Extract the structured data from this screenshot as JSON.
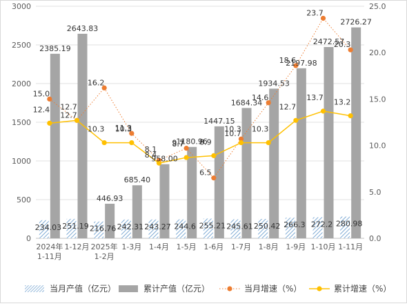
{
  "chart_data": {
    "type": "bar",
    "categories": [
      [
        "2024年",
        "1-11月"
      ],
      [
        "1-12月"
      ],
      [
        "2025年",
        "1-2月"
      ],
      [
        "1-3月"
      ],
      [
        "1-4月"
      ],
      [
        "1-5月"
      ],
      [
        "1-6月"
      ],
      [
        "1-7月"
      ],
      [
        "1-8月"
      ],
      [
        "1-9月"
      ],
      [
        "1-10月"
      ],
      [
        "1-11月"
      ]
    ],
    "series": [
      {
        "name": "当月产值（亿元）",
        "kind": "bar",
        "axis": "left",
        "pattern": "hatch",
        "color": "#9dc3e6",
        "values": [
          234.03,
          251.19,
          216.76,
          242.31,
          243.27,
          244.6,
          255.21,
          245.61,
          250.42,
          266.3,
          272.2,
          280.98
        ],
        "labels": [
          "234.03",
          "251.19",
          "216.76",
          "242.31",
          "243.27",
          "244.6",
          "255.21",
          "245.61",
          "250.42",
          "266.3",
          "272.2",
          "280.98"
        ]
      },
      {
        "name": "累计产值（亿元）",
        "kind": "bar",
        "axis": "left",
        "color": "#a5a5a5",
        "values": [
          2385.19,
          2643.83,
          446.93,
          685.4,
          958.0,
          1180.96,
          1447.15,
          1684.34,
          1934.53,
          2197.98,
          2472.57,
          2726.27
        ],
        "labels": [
          "2385.19",
          "2643.83",
          "446.93",
          "685.40",
          "958.00",
          "1180.96",
          "1447.15",
          "1684.34",
          "1934.53",
          "2197.98",
          "2472.57",
          "2726.27"
        ]
      },
      {
        "name": "当月增速（%）",
        "kind": "line",
        "axis": "right",
        "color": "#ed7d31",
        "dotted": true,
        "values": [
          15.0,
          12.7,
          16.2,
          11.3,
          8.4,
          9.7,
          6.5,
          10.7,
          14.6,
          18.6,
          23.7,
          20.3
        ],
        "labels": [
          "15.0",
          "12.7",
          "16.2",
          "11.3",
          "8.4",
          "9.7",
          "6.5",
          "10.7",
          "14.6",
          "18.6",
          "23.7",
          "20.3"
        ]
      },
      {
        "name": "累计增速（%）",
        "kind": "line",
        "axis": "right",
        "color": "#ffc000",
        "values": [
          12.4,
          12.7,
          10.3,
          10.3,
          8.1,
          8.7,
          8.9,
          10.3,
          10.3,
          12.7,
          13.7,
          13.2
        ],
        "labels": [
          "12.4",
          "12.7",
          "10.3",
          "10.3",
          "8.1",
          "8.7",
          "8.9",
          "10.3",
          "10.3",
          "12.7",
          "13.7",
          "13.2"
        ]
      }
    ],
    "y_left": {
      "min": 0,
      "max": 3000,
      "ticks": [
        "0",
        "500",
        "1000",
        "1500",
        "2000",
        "2500",
        "3000"
      ]
    },
    "y_right": {
      "min": 0,
      "max": 25,
      "ticks": [
        "0.0",
        "5.0",
        "10.0",
        "15.0",
        "20.0",
        "25.0"
      ]
    },
    "grid": true,
    "legend_position": "bottom"
  }
}
